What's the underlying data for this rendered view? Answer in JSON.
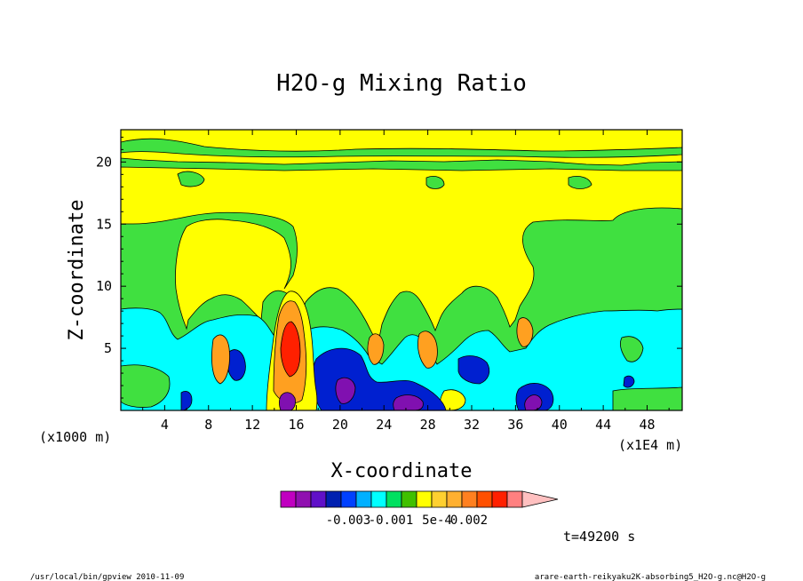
{
  "chart_data": {
    "type": "heatmap",
    "title": "H2O-g Mixing Ratio",
    "xlabel": "X-coordinate",
    "ylabel": "Z-coordinate",
    "x_unit_left": "(x1000 m)",
    "x_unit_right": "(x1E4 m)",
    "x_ticks": [
      "4",
      "8",
      "12",
      "16",
      "20",
      "24",
      "28",
      "32",
      "36",
      "40",
      "44",
      "48"
    ],
    "y_ticks": [
      "5",
      "10",
      "15",
      "20"
    ],
    "xlim": [
      0,
      51.2
    ],
    "ylim": [
      0,
      22.6
    ],
    "colorbar": {
      "colors": [
        "#c000c0",
        "#9010b0",
        "#6010c8",
        "#0020b0",
        "#0040ff",
        "#00b0ff",
        "#00ffff",
        "#00e060",
        "#40c000",
        "#ffff00",
        "#ffd030",
        "#ffb030",
        "#ff8020",
        "#ff5000",
        "#ff2000",
        "#ff8080"
      ],
      "extend_color": "#ffc0c0",
      "labels": [
        "-0.003",
        "-0.001",
        "5e-4",
        "0.002"
      ]
    },
    "regions": [
      {
        "level": "green",
        "color": "#40e040"
      },
      {
        "level": "yellow",
        "color": "#ffff00"
      },
      {
        "level": "cyan",
        "color": "#00ffff"
      },
      {
        "level": "blue",
        "color": "#0020d0"
      },
      {
        "level": "purple",
        "color": "#8010b0"
      },
      {
        "level": "orange",
        "color": "#ffa020"
      },
      {
        "level": "red",
        "color": "#ff2000"
      }
    ],
    "time_label": "t=49200 s"
  },
  "footer": {
    "left": "/usr/local/bin/gpview  2010-11-09",
    "right": "arare-earth-reikyaku2K-absorbing5_H2O-g.nc@H2O-g"
  }
}
